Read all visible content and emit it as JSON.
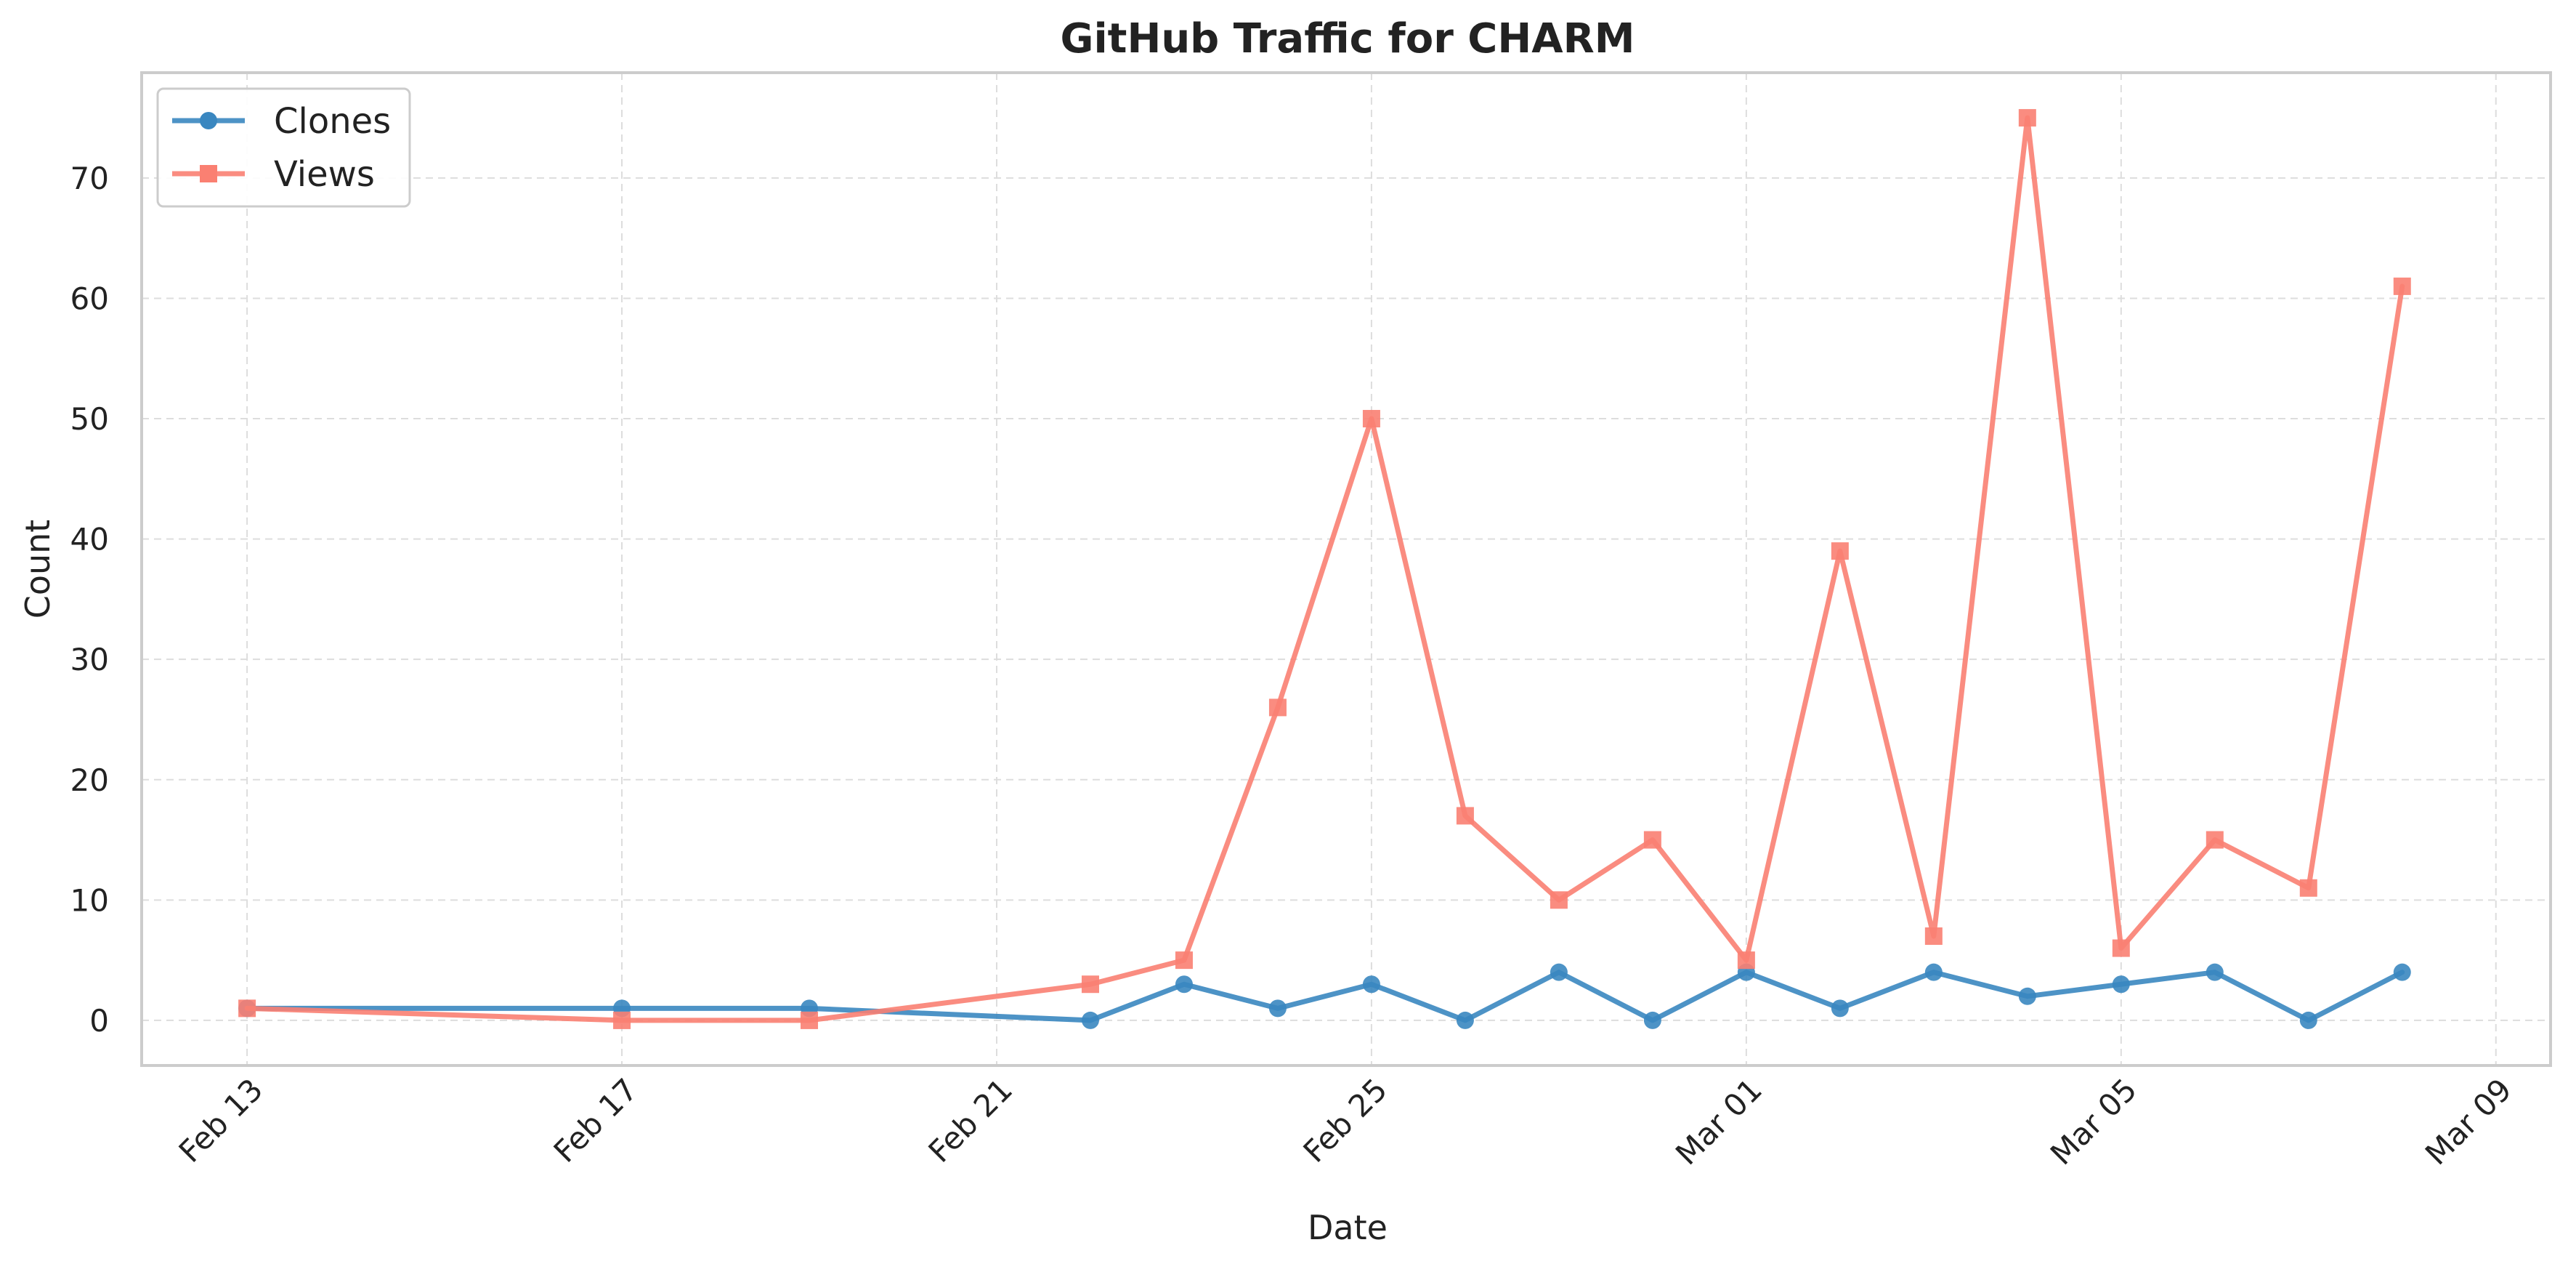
{
  "chart_data": {
    "type": "line",
    "title": "GitHub Traffic for CHARM",
    "xlabel": "Date",
    "ylabel": "Count",
    "x": [
      "2025-02-13",
      "2025-02-17",
      "2025-02-19",
      "2025-02-22",
      "2025-02-23",
      "2025-02-24",
      "2025-02-25",
      "2025-02-26",
      "2025-02-27",
      "2025-02-28",
      "2025-03-01",
      "2025-03-02",
      "2025-03-03",
      "2025-03-04",
      "2025-03-05",
      "2025-03-06",
      "2025-03-07",
      "2025-03-08"
    ],
    "series": [
      {
        "name": "Clones",
        "color": "#3a87c0",
        "marker": "circle",
        "values": [
          1,
          1,
          1,
          0,
          3,
          1,
          3,
          0,
          4,
          0,
          4,
          1,
          4,
          2,
          3,
          4,
          0,
          4
        ]
      },
      {
        "name": "Views",
        "color": "#fa8072",
        "marker": "square",
        "values": [
          1,
          0,
          0,
          3,
          5,
          26,
          50,
          17,
          10,
          15,
          5,
          39,
          7,
          75,
          6,
          15,
          11,
          61
        ]
      }
    ],
    "xticks": [
      "Feb 13",
      "Feb 17",
      "Feb 21",
      "Feb 25",
      "Mar 01",
      "Mar 05",
      "Mar 09"
    ],
    "xtick_dates": [
      "2025-02-13",
      "2025-02-17",
      "2025-02-21",
      "2025-02-25",
      "2025-03-01",
      "2025-03-05",
      "2025-03-09"
    ],
    "yticks": [
      0,
      10,
      20,
      30,
      40,
      50,
      60,
      70
    ],
    "xlim": [
      "2025-02-11T21:00",
      "2025-03-09T14:00"
    ],
    "ylim": [
      -3.75,
      78.75
    ],
    "grid": true,
    "legend_position": "upper left"
  }
}
